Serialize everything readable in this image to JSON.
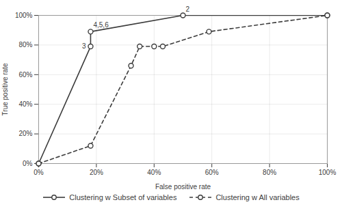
{
  "chart_data": {
    "type": "line",
    "xlabel": "False positive rate",
    "ylabel": "True positive rate",
    "series": [
      {
        "name": "Clustering w Subset of variables",
        "color": "#3c3c3c",
        "line_style": "solid",
        "marker": "circle",
        "x": [
          0.0,
          0.18,
          0.18,
          0.5,
          1.0
        ],
        "values": [
          0.0,
          0.79,
          0.89,
          1.0,
          1.0
        ]
      },
      {
        "name": "Clustering w All variables",
        "color": "#3c3c3c",
        "line_style": "dashed",
        "marker": "circle",
        "x": [
          0.0,
          0.18,
          0.32,
          0.35,
          0.4,
          0.43,
          0.59,
          1.0
        ],
        "values": [
          0.0,
          0.12,
          0.66,
          0.79,
          0.79,
          0.79,
          0.89,
          1.0
        ]
      }
    ],
    "annotations": [
      {
        "x": 0.18,
        "y": 0.79,
        "text": "3"
      },
      {
        "x": 0.18,
        "y": 0.89,
        "text": "4,5,6"
      },
      {
        "x": 0.5,
        "y": 1.0,
        "text": "2"
      }
    ],
    "xlim": [
      0.0,
      1.0
    ],
    "ylim": [
      0.0,
      1.0
    ],
    "xticks": [
      {
        "value": 0.0,
        "label": "0%"
      },
      {
        "value": 0.2,
        "label": "20%"
      },
      {
        "value": 0.4,
        "label": "40%"
      },
      {
        "value": 0.6,
        "label": "60%"
      },
      {
        "value": 0.8,
        "label": "80%"
      },
      {
        "value": 1.0,
        "label": "100%"
      }
    ],
    "yticks": [
      {
        "value": 0.0,
        "label": "0%"
      },
      {
        "value": 0.2,
        "label": "20%"
      },
      {
        "value": 0.4,
        "label": "40%"
      },
      {
        "value": 0.6,
        "label": "60%"
      },
      {
        "value": 0.8,
        "label": "80%"
      },
      {
        "value": 1.0,
        "label": "100%"
      }
    ],
    "grid": true,
    "legend": "bottom"
  }
}
